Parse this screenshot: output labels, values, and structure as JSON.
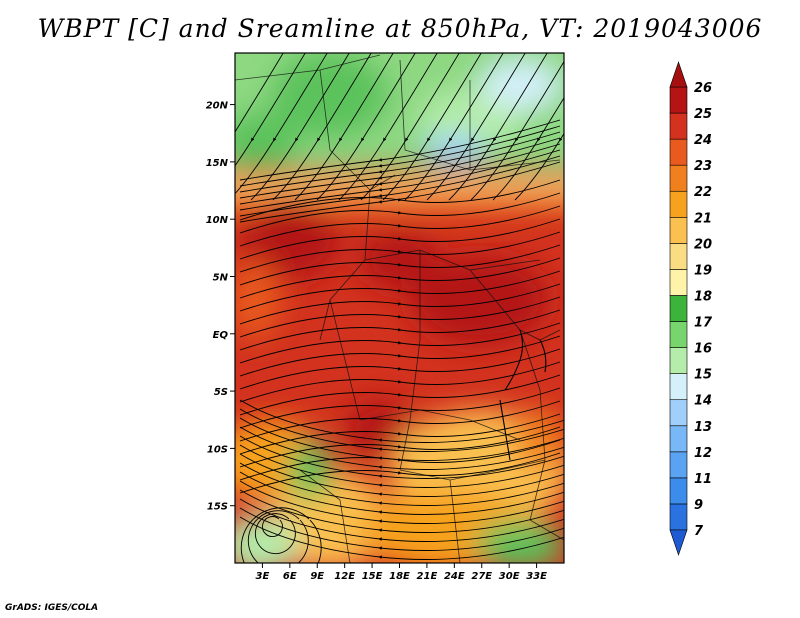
{
  "title": "WBPT [C] and Sreamline at 850hPa, VT: 2019043006",
  "credit": "GrADS: IGES/COLA",
  "map": {
    "lon_range": [
      0,
      36
    ],
    "lat_range": [
      -20,
      24.5
    ],
    "lat_ticks": [
      {
        "value": 20,
        "label": "20N"
      },
      {
        "value": 15,
        "label": "15N"
      },
      {
        "value": 10,
        "label": "10N"
      },
      {
        "value": 5,
        "label": "5N"
      },
      {
        "value": 0,
        "label": "EQ"
      },
      {
        "value": -5,
        "label": "5S"
      },
      {
        "value": -10,
        "label": "10S"
      },
      {
        "value": -15,
        "label": "15S"
      }
    ],
    "lon_ticks": [
      {
        "value": 3,
        "label": "3E"
      },
      {
        "value": 6,
        "label": "6E"
      },
      {
        "value": 9,
        "label": "9E"
      },
      {
        "value": 12,
        "label": "12E"
      },
      {
        "value": 15,
        "label": "15E"
      },
      {
        "value": 18,
        "label": "18E"
      },
      {
        "value": 21,
        "label": "21E"
      },
      {
        "value": 24,
        "label": "24E"
      },
      {
        "value": 27,
        "label": "27E"
      },
      {
        "value": 30,
        "label": "30E"
      },
      {
        "value": 33,
        "label": "33E"
      }
    ]
  },
  "colorbar": {
    "levels": [
      {
        "label": "7",
        "color": "#1e5ad2"
      },
      {
        "label": "9",
        "color": "#2a72e0"
      },
      {
        "label": "11",
        "color": "#3c8cec"
      },
      {
        "label": "12",
        "color": "#5aa2f2"
      },
      {
        "label": "13",
        "color": "#78b8f6"
      },
      {
        "label": "14",
        "color": "#a0d0fa"
      },
      {
        "label": "15",
        "color": "#d4f0fa"
      },
      {
        "label": "16",
        "color": "#b4ecaa"
      },
      {
        "label": "17",
        "color": "#78d46c"
      },
      {
        "label": "18",
        "color": "#3cb43c"
      },
      {
        "label": "19",
        "color": "#fff3aa"
      },
      {
        "label": "20",
        "color": "#fadc82"
      },
      {
        "label": "21",
        "color": "#fac050"
      },
      {
        "label": "22",
        "color": "#f7a21e"
      },
      {
        "label": "23",
        "color": "#f0801e"
      },
      {
        "label": "24",
        "color": "#e85a1e"
      },
      {
        "label": "25",
        "color": "#d2321e"
      },
      {
        "label": "26",
        "color": "#b41414"
      }
    ],
    "min_color": "#1e5ad2",
    "max_color": "#a50f0f"
  }
}
